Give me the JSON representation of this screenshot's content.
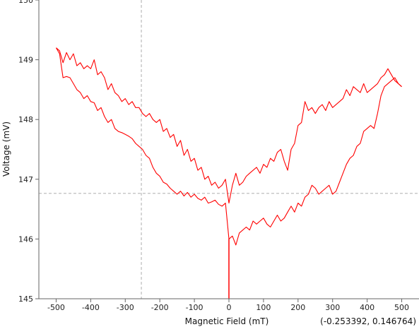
{
  "chart_data": {
    "type": "line",
    "title": "",
    "xlabel": "Magnetic Field (mT)",
    "ylabel": "Voltage (mV)",
    "xlim": [
      -550,
      550
    ],
    "ylim": [
      145,
      150
    ],
    "xticks": [
      -500,
      -400,
      -300,
      -200,
      -100,
      0,
      100,
      200,
      300,
      400,
      500
    ],
    "yticks": [
      145,
      146,
      147,
      148,
      149,
      150
    ],
    "grid": false,
    "line_color": "#ff0000",
    "cursor": {
      "x": -253.392,
      "y": 146.764,
      "readout": "(-0.253392, 0.146764)",
      "line_color": "#c8c8c8"
    },
    "series": [
      {
        "x": [
          -500,
          -490,
          -480,
          -470,
          -460,
          -450,
          -440,
          -430,
          -420,
          -410,
          -400,
          -390,
          -380,
          -370,
          -360,
          -350,
          -340,
          -330,
          -320,
          -310,
          -300,
          -290,
          -280,
          -270,
          -260,
          -250,
          -240,
          -230,
          -220,
          -210,
          -200,
          -190,
          -180,
          -170,
          -160,
          -150,
          -140,
          -130,
          -120,
          -110,
          -100,
          -90,
          -80,
          -70,
          -60,
          -50,
          -40,
          -30,
          -20,
          -10,
          0,
          10,
          20,
          30,
          40,
          50,
          60,
          70,
          80,
          90,
          100,
          110,
          120,
          130,
          140,
          150,
          160,
          170,
          180,
          190,
          200,
          210,
          220,
          230,
          240,
          250,
          260,
          270,
          280,
          290,
          300,
          310,
          320,
          330,
          340,
          350,
          360,
          370,
          380,
          390,
          400,
          410,
          420,
          430,
          440,
          450,
          460,
          470,
          480,
          490,
          500
        ],
        "y": [
          149.2,
          149.15,
          148.95,
          149.12,
          149.0,
          149.1,
          148.9,
          148.95,
          148.85,
          148.9,
          148.85,
          149.0,
          148.75,
          148.8,
          148.7,
          148.5,
          148.6,
          148.45,
          148.4,
          148.3,
          148.35,
          148.25,
          148.3,
          148.2,
          148.2,
          148.1,
          148.05,
          148.1,
          148.0,
          147.95,
          148.0,
          147.8,
          147.85,
          147.7,
          147.75,
          147.55,
          147.65,
          147.4,
          147.5,
          147.3,
          147.35,
          147.15,
          147.2,
          147.0,
          147.05,
          146.9,
          146.95,
          146.85,
          146.9,
          147.0,
          146.6,
          146.9,
          147.1,
          146.9,
          146.95,
          147.05,
          147.1,
          147.15,
          147.2,
          147.1,
          147.25,
          147.2,
          147.35,
          147.3,
          147.45,
          147.5,
          147.3,
          147.15,
          147.5,
          147.6,
          147.9,
          147.95,
          148.3,
          148.15,
          148.2,
          148.1,
          148.2,
          148.25,
          148.15,
          148.3,
          148.2,
          148.25,
          148.3,
          148.35,
          148.5,
          148.4,
          148.55,
          148.5,
          148.45,
          148.6,
          148.45,
          148.5,
          148.55,
          148.6,
          148.7,
          148.75,
          148.85,
          148.75,
          148.65,
          148.6,
          148.55
        ]
      },
      {
        "x": [
          -500,
          -490,
          -480,
          -470,
          -460,
          -450,
          -440,
          -430,
          -420,
          -410,
          -400,
          -390,
          -380,
          -370,
          -360,
          -350,
          -340,
          -330,
          -320,
          -310,
          -300,
          -290,
          -280,
          -270,
          -260,
          -250,
          -240,
          -230,
          -220,
          -210,
          -200,
          -190,
          -180,
          -170,
          -160,
          -150,
          -140,
          -130,
          -120,
          -110,
          -100,
          -90,
          -80,
          -70,
          -60,
          -50,
          -40,
          -30,
          -20,
          -10,
          0,
          10,
          20,
          30,
          40,
          50,
          60,
          70,
          80,
          90,
          100,
          110,
          120,
          130,
          140,
          150,
          160,
          170,
          180,
          190,
          200,
          210,
          220,
          230,
          240,
          250,
          260,
          270,
          280,
          290,
          300,
          310,
          320,
          330,
          340,
          350,
          360,
          370,
          380,
          390,
          400,
          410,
          420,
          430,
          440,
          450,
          460,
          470,
          480,
          490,
          500
        ],
        "y": [
          149.2,
          149.1,
          148.7,
          148.72,
          148.7,
          148.6,
          148.5,
          148.45,
          148.35,
          148.4,
          148.3,
          148.28,
          148.15,
          148.2,
          148.05,
          147.95,
          148.0,
          147.85,
          147.8,
          147.78,
          147.75,
          147.72,
          147.68,
          147.6,
          147.55,
          147.5,
          147.4,
          147.35,
          147.2,
          147.1,
          147.05,
          146.95,
          146.92,
          146.85,
          146.8,
          146.75,
          146.8,
          146.72,
          146.78,
          146.7,
          146.75,
          146.68,
          146.65,
          146.7,
          146.6,
          146.62,
          146.65,
          146.58,
          146.55,
          146.6,
          146.0,
          146.05,
          145.9,
          146.1,
          146.15,
          146.2,
          146.15,
          146.3,
          146.25,
          146.3,
          146.35,
          146.25,
          146.2,
          146.3,
          146.4,
          146.3,
          146.35,
          146.45,
          146.55,
          146.45,
          146.6,
          146.55,
          146.7,
          146.75,
          146.9,
          146.85,
          146.75,
          146.8,
          146.85,
          146.9,
          146.75,
          146.8,
          146.95,
          147.1,
          147.25,
          147.35,
          147.4,
          147.55,
          147.6,
          147.8,
          147.85,
          147.9,
          147.85,
          148.1,
          148.4,
          148.55,
          148.6,
          148.65,
          148.7,
          148.6,
          148.55
        ]
      }
    ]
  }
}
